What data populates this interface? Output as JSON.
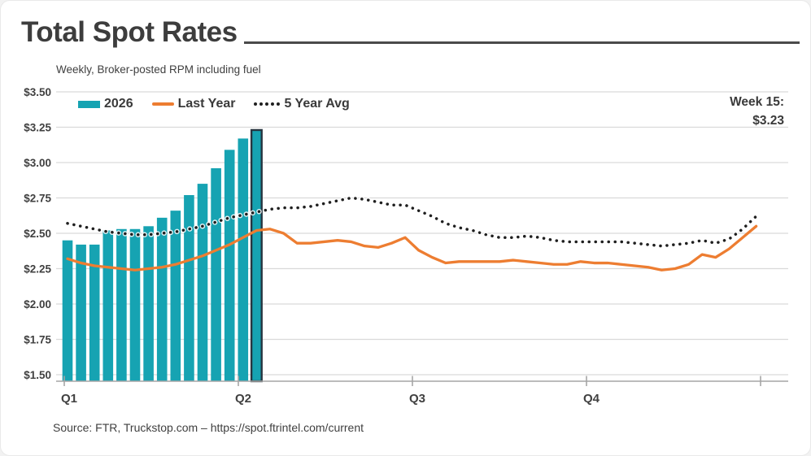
{
  "title": "Total Spot Rates",
  "subtitle": "Weekly, Broker-posted RPM including fuel",
  "source": "Source: FTR, Truckstop.com – https://spot.ftrintel.com/current",
  "annotation": {
    "line1": "Week 15:",
    "line2": "$3.23"
  },
  "legend": [
    {
      "label": "2026",
      "swatch": "bar-swatch",
      "color": "#16A3B2"
    },
    {
      "label": "Last Year",
      "swatch": "line-swatch",
      "color": "#ED7D31"
    },
    {
      "label": "5 Year Avg",
      "swatch": "dotted-swatch",
      "color": "#1F1F1F"
    }
  ],
  "colors": {
    "bar": "#16A3B2",
    "bar_highlight_outline": "#273540",
    "last_year_line": "#ED7D31",
    "five_year_avg_line": "#1F1F1F",
    "grid": "#D9D9D9",
    "axis": "#A6A6A6",
    "text": "#404040"
  },
  "chart_data": {
    "type": "combo (bar + line)",
    "title": "Total Spot Rates",
    "subtitle": "Weekly, Broker-posted RPM including fuel",
    "x_unit": "week",
    "weeks_total": 52,
    "grid": true,
    "legend_position": "top-left",
    "x_axis": {
      "tick_labels": [
        "Q1",
        "Q2",
        "Q3",
        "Q4"
      ],
      "tick_weeks": [
        1,
        14,
        27,
        40
      ]
    },
    "y_axis": {
      "min": 1.5,
      "max": 3.5,
      "step": 0.25,
      "tick_labels": [
        "$3.50",
        "$3.25",
        "$3.00",
        "$2.75",
        "$2.50",
        "$2.25",
        "$2.00",
        "$1.75",
        "$1.50"
      ],
      "tick_values": [
        3.5,
        3.25,
        3.0,
        2.75,
        2.5,
        2.25,
        2.0,
        1.75,
        1.5
      ]
    },
    "series": [
      {
        "name": "2026",
        "type": "bar",
        "color": "#16A3B2",
        "start_week": 1,
        "values": [
          2.45,
          2.42,
          2.42,
          2.52,
          2.53,
          2.53,
          2.55,
          2.61,
          2.66,
          2.77,
          2.85,
          2.96,
          3.09,
          3.17,
          3.23
        ],
        "highlight": {
          "week": 15,
          "value": 3.23,
          "outline": "#273540"
        }
      },
      {
        "name": "Last Year",
        "type": "line",
        "color": "#ED7D31",
        "values": [
          2.32,
          2.29,
          2.27,
          2.26,
          2.25,
          2.24,
          2.25,
          2.26,
          2.28,
          2.31,
          2.34,
          2.38,
          2.42,
          2.47,
          2.52,
          2.53,
          2.5,
          2.43,
          2.43,
          2.44,
          2.45,
          2.44,
          2.41,
          2.4,
          2.43,
          2.47,
          2.38,
          2.33,
          2.29,
          2.3,
          2.3,
          2.3,
          2.3,
          2.31,
          2.3,
          2.29,
          2.28,
          2.28,
          2.3,
          2.29,
          2.29,
          2.28,
          2.27,
          2.26,
          2.24,
          2.25,
          2.28,
          2.35,
          2.33,
          2.39,
          2.47,
          2.55
        ]
      },
      {
        "name": "5 Year Avg",
        "type": "dotted-line",
        "color": "#1F1F1F",
        "values": [
          2.57,
          2.55,
          2.53,
          2.51,
          2.5,
          2.49,
          2.49,
          2.5,
          2.51,
          2.53,
          2.55,
          2.58,
          2.61,
          2.63,
          2.65,
          2.67,
          2.68,
          2.68,
          2.69,
          2.71,
          2.73,
          2.75,
          2.74,
          2.72,
          2.7,
          2.7,
          2.66,
          2.62,
          2.57,
          2.54,
          2.52,
          2.49,
          2.47,
          2.47,
          2.48,
          2.47,
          2.45,
          2.44,
          2.44,
          2.44,
          2.44,
          2.44,
          2.43,
          2.42,
          2.41,
          2.42,
          2.43,
          2.45,
          2.43,
          2.46,
          2.53,
          2.62
        ]
      }
    ],
    "callout": {
      "label": "Week 15:",
      "value": "$3.23"
    }
  }
}
